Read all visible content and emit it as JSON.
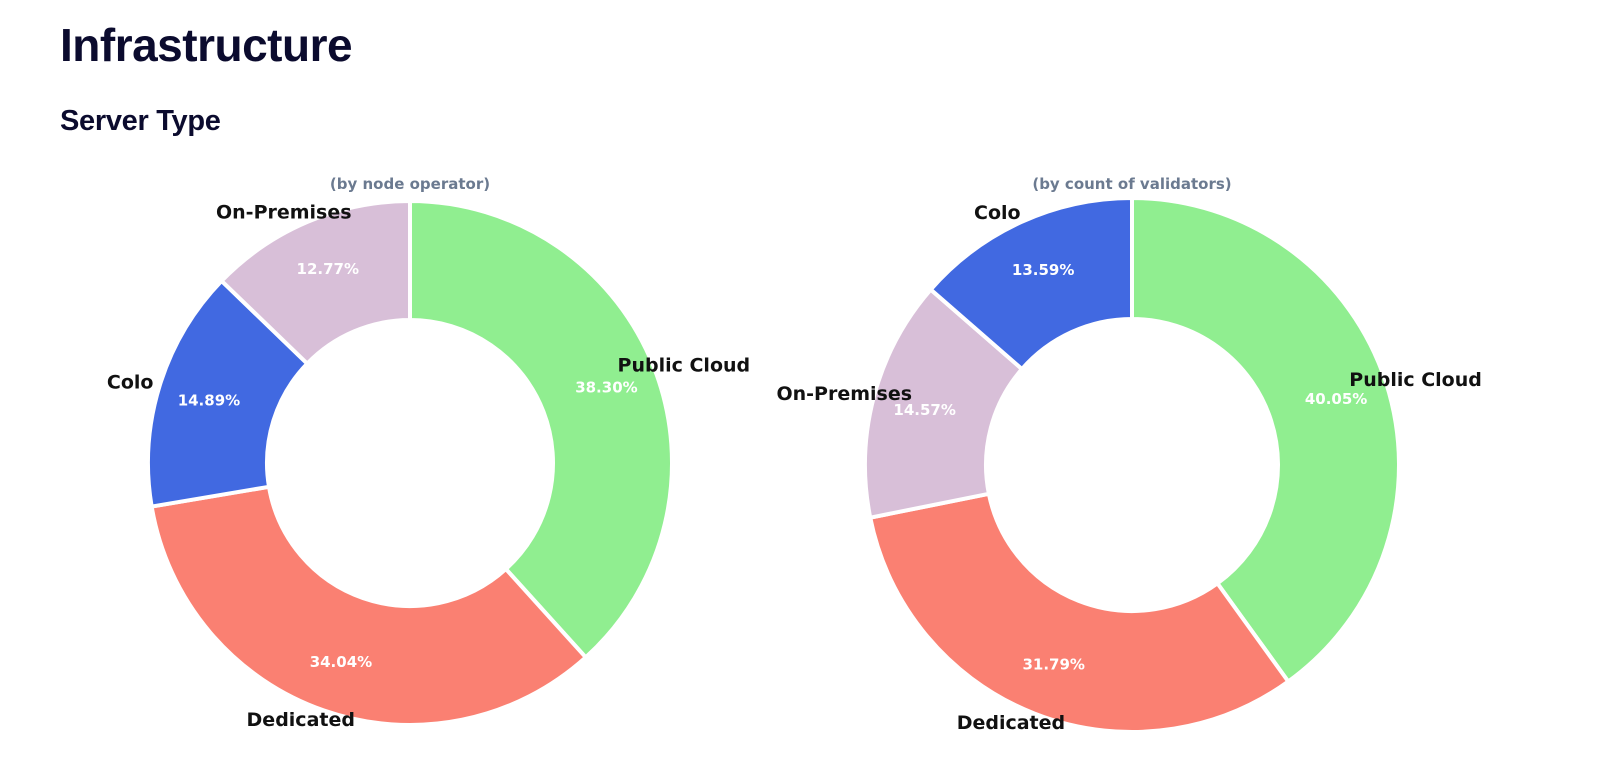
{
  "page": {
    "title": "Infrastructure",
    "section_title": "Server Type"
  },
  "chart_data": [
    {
      "type": "pie",
      "variant": "donut",
      "subtitle": "(by node operator)",
      "slices": [
        {
          "label": "Public Cloud",
          "value": 38.3,
          "display": "38.30%",
          "color": "#90ee90"
        },
        {
          "label": "Dedicated",
          "value": 34.04,
          "display": "34.04%",
          "color": "#fa8072"
        },
        {
          "label": "Colo",
          "value": 14.89,
          "display": "14.89%",
          "color": "#4169e1"
        },
        {
          "label": "On-Premises",
          "value": 12.77,
          "display": "12.77%",
          "color": "#d8bfd8"
        }
      ]
    },
    {
      "type": "pie",
      "variant": "donut",
      "subtitle": "(by count of validators)",
      "slices": [
        {
          "label": "Public Cloud",
          "value": 40.05,
          "display": "40.05%",
          "color": "#90ee90"
        },
        {
          "label": "Dedicated",
          "value": 31.79,
          "display": "31.79%",
          "color": "#fa8072"
        },
        {
          "label": "On-Premises",
          "value": 14.57,
          "display": "14.57%",
          "color": "#d8bfd8"
        },
        {
          "label": "Colo",
          "value": 13.59,
          "display": "13.59%",
          "color": "#4169e1"
        }
      ]
    }
  ]
}
